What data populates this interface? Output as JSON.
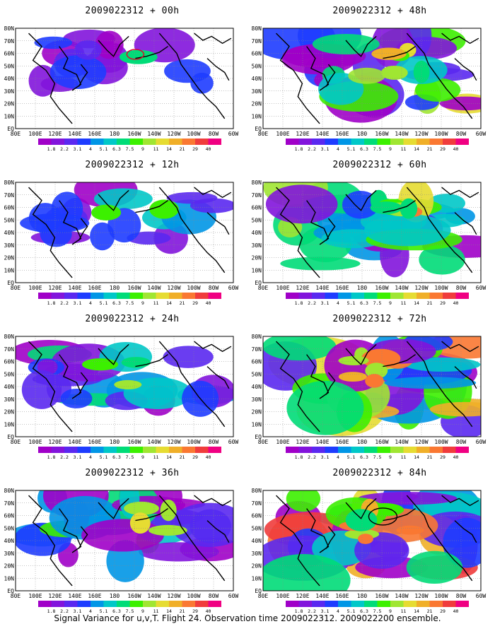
{
  "color_scale": {
    "levels": [
      "1.8",
      "2.2",
      "3.1",
      "4",
      "5.1",
      "6.3",
      "7.5",
      "9",
      "11",
      "14",
      "21",
      "29",
      "40"
    ],
    "colors": [
      "#a000c8",
      "#8214dc",
      "#5a28f0",
      "#1e3cff",
      "#0096e6",
      "#00c8c8",
      "#00dc78",
      "#3cf000",
      "#a0e632",
      "#e6dc32",
      "#f0af28",
      "#fa7832",
      "#f03c3c",
      "#f00082"
    ]
  },
  "axes": {
    "lat_labels": [
      "80N",
      "70N",
      "60N",
      "50N",
      "40N",
      "30N",
      "20N",
      "10N",
      "EQ"
    ],
    "lon_labels": [
      "80E",
      "100E",
      "120E",
      "140E",
      "160E",
      "180",
      "160W",
      "140W",
      "120W",
      "100W",
      "80W",
      "60W"
    ]
  },
  "panels": [
    {
      "title": "2009022312 + 00h",
      "intensity": 0.15,
      "circle": "red"
    },
    {
      "title": "2009022312 + 12h",
      "intensity": 0.3,
      "circle": ""
    },
    {
      "title": "2009022312 + 24h",
      "intensity": 0.42,
      "circle": ""
    },
    {
      "title": "2009022312 + 36h",
      "intensity": 0.52,
      "circle": ""
    },
    {
      "title": "2009022312 + 48h",
      "intensity": 0.6,
      "circle": ""
    },
    {
      "title": "2009022312 + 60h",
      "intensity": 0.72,
      "circle": ""
    },
    {
      "title": "2009022312 + 72h",
      "intensity": 0.82,
      "circle": ""
    },
    {
      "title": "2009022312 + 84h",
      "intensity": 0.92,
      "circle": "black"
    }
  ],
  "caption": "Signal Variance for u,v,T. Flight 24. Observation time 2009022312. 2009022200 ensemble."
}
